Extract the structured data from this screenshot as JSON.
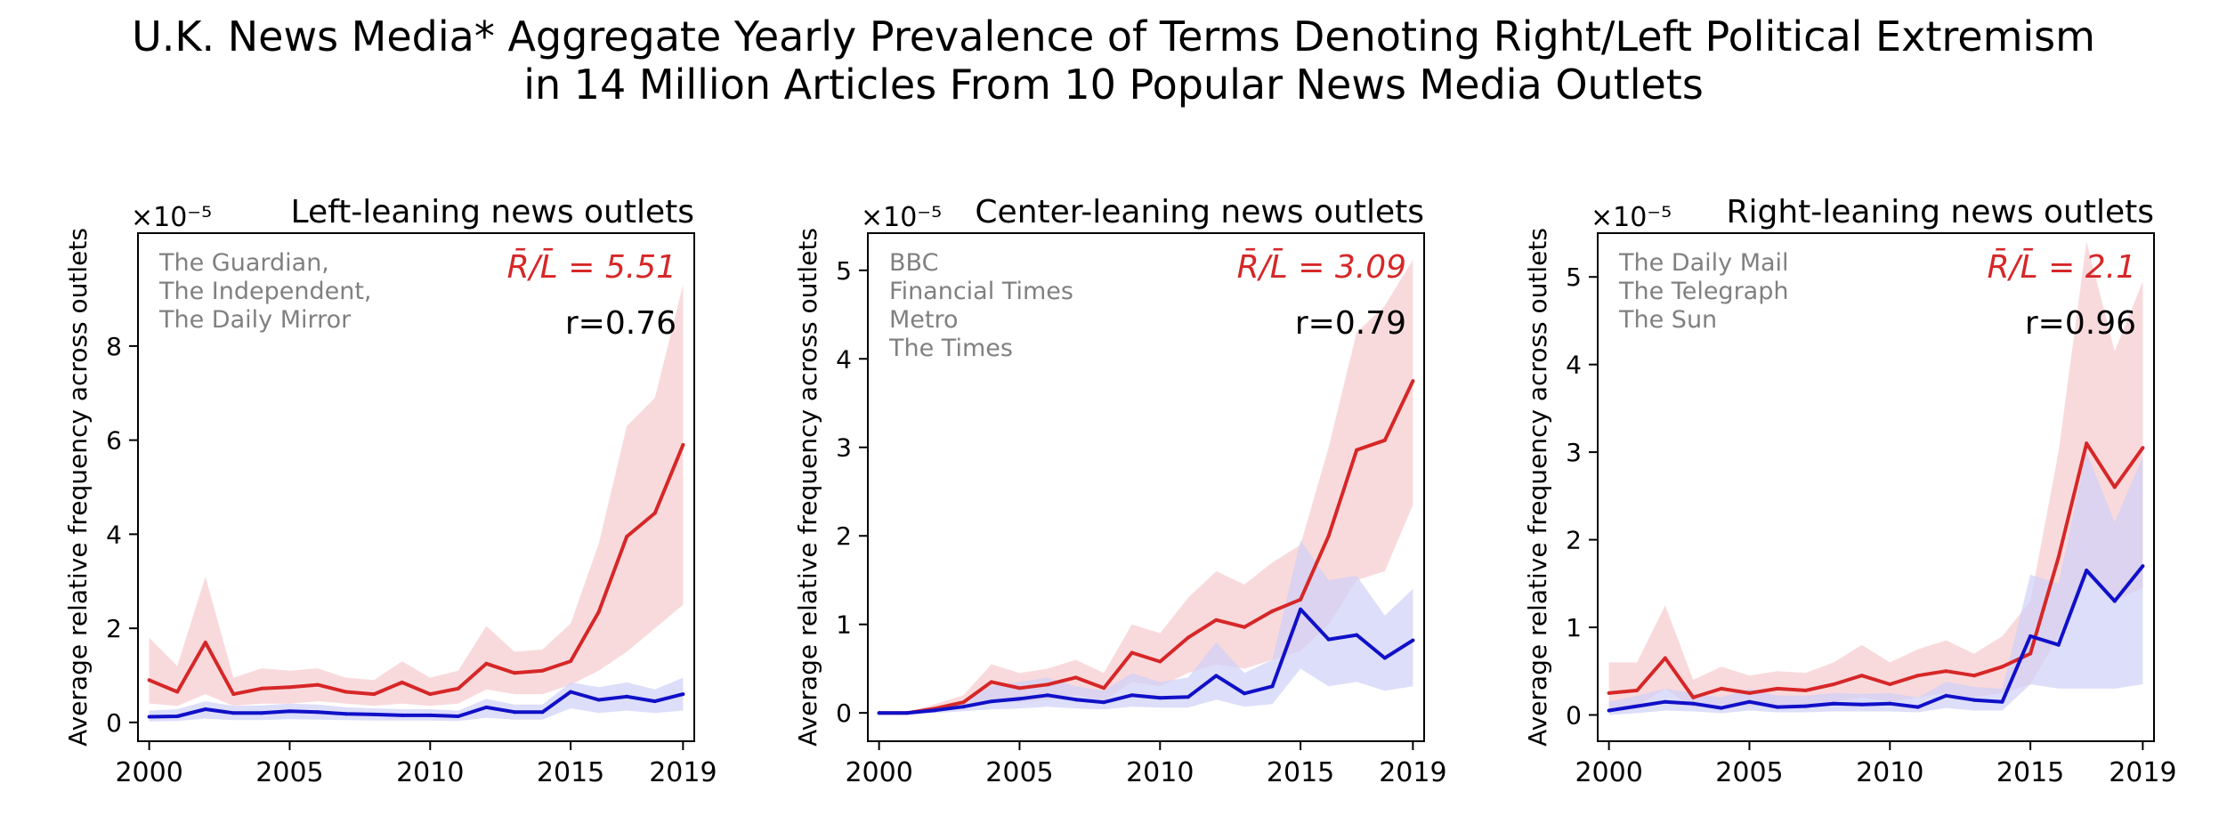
{
  "figure": {
    "title_line1": "U.K. News Media* Aggregate Yearly Prevalence of Terms Denoting Right/Left Political Extremism",
    "title_line2": "in 14 Million Articles From 10 Popular News Media Outlets"
  },
  "colors": {
    "right": "#d62728",
    "right_band": "#f7cdd0",
    "left": "#1010c8",
    "left_band": "#cfd0f7",
    "outlet_text": "#808080"
  },
  "chart_data": [
    {
      "type": "line",
      "title": "Left-leaning news outlets",
      "scale_label": "×10⁻⁵",
      "ylabel": "Average relative frequency across outlets",
      "outlets": [
        "The Guardian,",
        "The Independent,",
        "The Daily Mirror"
      ],
      "ratio_label": "R̄/L̄ = 5.51",
      "r_label": "r=0.76",
      "x": [
        2000,
        2001,
        2002,
        2003,
        2004,
        2005,
        2006,
        2007,
        2008,
        2009,
        2010,
        2011,
        2012,
        2013,
        2014,
        2015,
        2016,
        2017,
        2018,
        2019
      ],
      "xticks": [
        2000,
        2005,
        2010,
        2015,
        2019
      ],
      "yticks": [
        0,
        2,
        4,
        6,
        8
      ],
      "xlim": [
        1999.6,
        2019.4
      ],
      "ylim": [
        -0.4,
        10.4
      ],
      "grid": false,
      "series": [
        {
          "values": [
            0.9,
            0.65,
            1.7,
            0.6,
            0.72,
            0.75,
            0.8,
            0.65,
            0.6,
            0.85,
            0.6,
            0.72,
            1.25,
            1.05,
            1.1,
            1.3,
            2.35,
            3.95,
            4.45,
            5.9
          ],
          "lower": [
            0.4,
            0.35,
            0.6,
            0.35,
            0.4,
            0.4,
            0.45,
            0.4,
            0.35,
            0.4,
            0.35,
            0.4,
            0.7,
            0.6,
            0.6,
            0.8,
            1.1,
            1.5,
            2.0,
            2.5
          ],
          "upper": [
            1.8,
            1.2,
            3.1,
            0.95,
            1.15,
            1.1,
            1.15,
            0.95,
            0.9,
            1.3,
            0.95,
            1.1,
            2.05,
            1.5,
            1.55,
            2.1,
            3.8,
            6.3,
            6.9,
            9.3
          ]
        },
        {
          "values": [
            0.12,
            0.13,
            0.28,
            0.2,
            0.2,
            0.24,
            0.22,
            0.18,
            0.17,
            0.15,
            0.15,
            0.13,
            0.32,
            0.22,
            0.22,
            0.65,
            0.48,
            0.55,
            0.45,
            0.6
          ],
          "lower": [
            0.02,
            0.03,
            0.08,
            0.05,
            0.05,
            0.07,
            0.06,
            0.05,
            0.04,
            0.04,
            0.04,
            0.03,
            0.1,
            0.06,
            0.06,
            0.3,
            0.2,
            0.25,
            0.2,
            0.25
          ],
          "upper": [
            0.25,
            0.28,
            0.45,
            0.35,
            0.36,
            0.4,
            0.38,
            0.32,
            0.3,
            0.28,
            0.28,
            0.25,
            0.5,
            0.38,
            0.38,
            0.85,
            0.75,
            0.85,
            0.7,
            0.95
          ]
        }
      ]
    },
    {
      "type": "line",
      "title": "Center-leaning news outlets",
      "scale_label": "×10⁻⁵",
      "ylabel": "Average relative frequency across outlets",
      "outlets": [
        "BBC",
        "Financial Times",
        "Metro",
        "The Times"
      ],
      "ratio_label": "R̄/L̄ = 3.09",
      "r_label": "r=0.79",
      "x": [
        2000,
        2001,
        2002,
        2003,
        2004,
        2005,
        2006,
        2007,
        2008,
        2009,
        2010,
        2011,
        2012,
        2013,
        2014,
        2015,
        2016,
        2017,
        2018,
        2019
      ],
      "xticks": [
        2000,
        2005,
        2010,
        2015,
        2019
      ],
      "yticks": [
        0,
        1,
        2,
        3,
        4,
        5
      ],
      "xlim": [
        1999.6,
        2019.4
      ],
      "ylim": [
        -0.32,
        5.42
      ],
      "grid": false,
      "series": [
        {
          "values": [
            0.0,
            0.0,
            0.05,
            0.12,
            0.35,
            0.28,
            0.32,
            0.4,
            0.28,
            0.68,
            0.58,
            0.85,
            1.05,
            0.97,
            1.15,
            1.28,
            2.0,
            2.97,
            3.08,
            3.75
          ],
          "lower": [
            0.0,
            0.0,
            0.02,
            0.05,
            0.15,
            0.12,
            0.15,
            0.2,
            0.14,
            0.35,
            0.3,
            0.45,
            0.55,
            0.5,
            0.6,
            0.7,
            1.0,
            1.5,
            1.6,
            2.35
          ],
          "upper": [
            0.0,
            0.0,
            0.1,
            0.2,
            0.55,
            0.45,
            0.5,
            0.6,
            0.45,
            1.0,
            0.9,
            1.3,
            1.6,
            1.45,
            1.7,
            1.9,
            3.0,
            4.3,
            4.6,
            5.12
          ]
        },
        {
          "values": [
            0.0,
            0.0,
            0.03,
            0.07,
            0.13,
            0.16,
            0.2,
            0.15,
            0.12,
            0.2,
            0.17,
            0.18,
            0.42,
            0.22,
            0.3,
            1.17,
            0.83,
            0.88,
            0.62,
            0.82
          ],
          "lower": [
            0.0,
            0.0,
            0.0,
            0.02,
            0.04,
            0.05,
            0.07,
            0.05,
            0.04,
            0.07,
            0.06,
            0.06,
            0.15,
            0.07,
            0.1,
            0.5,
            0.3,
            0.35,
            0.25,
            0.3
          ],
          "upper": [
            0.0,
            0.0,
            0.06,
            0.14,
            0.3,
            0.35,
            0.4,
            0.3,
            0.25,
            0.45,
            0.35,
            0.4,
            0.8,
            0.45,
            0.6,
            1.95,
            1.5,
            1.55,
            1.1,
            1.4
          ]
        }
      ]
    },
    {
      "type": "line",
      "title": "Right-leaning news outlets",
      "scale_label": "×10⁻⁵",
      "ylabel": "Average relative frequency across outlets",
      "outlets": [
        "The Daily Mail",
        "The Telegraph",
        "The Sun"
      ],
      "ratio_label": "R̄/L̄ = 2.1",
      "r_label": "r=0.96",
      "x": [
        2000,
        2001,
        2002,
        2003,
        2004,
        2005,
        2006,
        2007,
        2008,
        2009,
        2010,
        2011,
        2012,
        2013,
        2014,
        2015,
        2016,
        2017,
        2018,
        2019
      ],
      "xticks": [
        2000,
        2005,
        2010,
        2015,
        2019
      ],
      "yticks": [
        0,
        1,
        2,
        3,
        4,
        5
      ],
      "xlim": [
        1999.6,
        2019.4
      ],
      "ylim": [
        -0.3,
        5.5
      ],
      "grid": false,
      "series": [
        {
          "values": [
            0.25,
            0.28,
            0.65,
            0.2,
            0.3,
            0.25,
            0.3,
            0.28,
            0.35,
            0.45,
            0.35,
            0.45,
            0.5,
            0.45,
            0.55,
            0.7,
            1.8,
            3.1,
            2.6,
            3.05
          ],
          "lower": [
            0.08,
            0.1,
            0.3,
            0.08,
            0.12,
            0.1,
            0.12,
            0.1,
            0.15,
            0.2,
            0.15,
            0.2,
            0.25,
            0.2,
            0.25,
            0.35,
            0.9,
            1.6,
            1.3,
            1.45
          ],
          "upper": [
            0.6,
            0.6,
            1.25,
            0.4,
            0.55,
            0.45,
            0.5,
            0.48,
            0.6,
            0.8,
            0.6,
            0.75,
            0.85,
            0.7,
            0.9,
            1.3,
            3.0,
            5.4,
            4.15,
            4.95
          ]
        },
        {
          "values": [
            0.05,
            0.1,
            0.15,
            0.13,
            0.08,
            0.15,
            0.09,
            0.1,
            0.13,
            0.12,
            0.13,
            0.09,
            0.22,
            0.17,
            0.15,
            0.9,
            0.8,
            1.65,
            1.3,
            1.7
          ],
          "lower": [
            0.0,
            0.02,
            0.05,
            0.04,
            0.02,
            0.05,
            0.03,
            0.03,
            0.04,
            0.04,
            0.04,
            0.03,
            0.08,
            0.05,
            0.05,
            0.35,
            0.3,
            0.3,
            0.3,
            0.35
          ],
          "upper": [
            0.15,
            0.22,
            0.3,
            0.25,
            0.2,
            0.3,
            0.22,
            0.22,
            0.25,
            0.24,
            0.25,
            0.2,
            0.38,
            0.32,
            0.3,
            1.6,
            1.5,
            3.0,
            2.2,
            2.95
          ]
        }
      ]
    }
  ]
}
